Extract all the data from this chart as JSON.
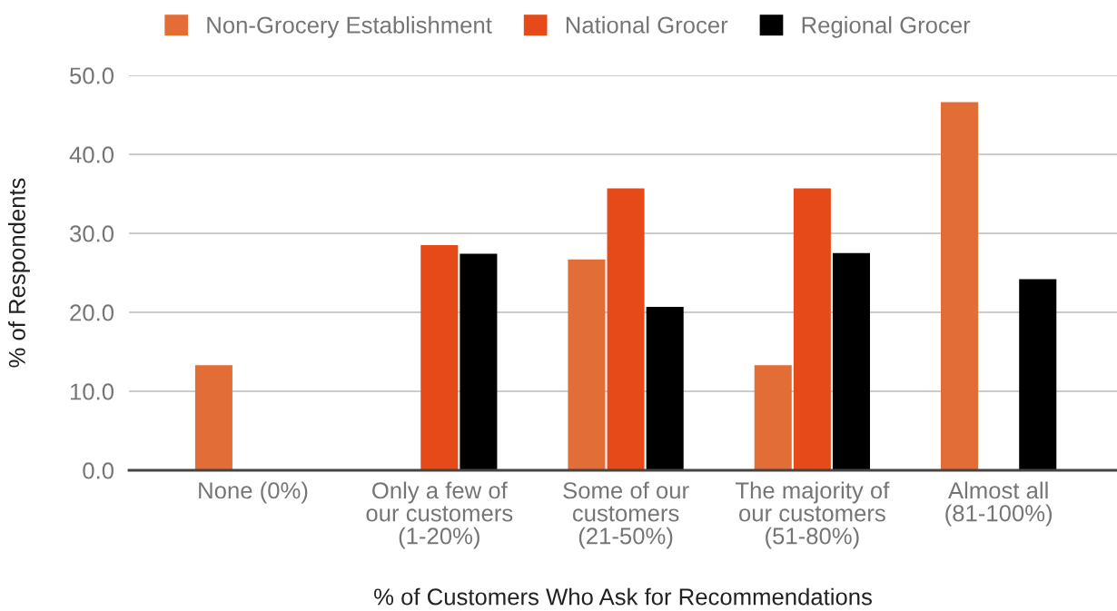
{
  "chart_data": {
    "type": "bar",
    "xlabel": "% of Customers Who Ask for Recommendations",
    "ylabel": "% of Respondents",
    "categories": [
      "None (0%)",
      "Only a few of\nour customers\n(1-20%)",
      "Some of our\ncustomers\n(21-50%)",
      "The majority of\nour customers\n(51-80%)",
      "Almost all\n(81-100%)"
    ],
    "series": [
      {
        "name": "Non-Grocery Establishment",
        "color": "#e36d36",
        "values": [
          13.3,
          null,
          26.7,
          13.3,
          46.6
        ]
      },
      {
        "name": "National Grocer",
        "color": "#e64a19",
        "values": [
          null,
          28.5,
          35.7,
          35.7,
          null
        ]
      },
      {
        "name": "Regional Grocer",
        "color": "#000000",
        "values": [
          null,
          27.4,
          20.7,
          27.5,
          24.2
        ]
      }
    ],
    "ylim": [
      0,
      50
    ],
    "yticks": [
      {
        "value": 0,
        "label": "0.0"
      },
      {
        "value": 10,
        "label": "10.0"
      },
      {
        "value": 20,
        "label": "20.0"
      },
      {
        "value": 30,
        "label": "30.0"
      },
      {
        "value": 40,
        "label": "40.0"
      },
      {
        "value": 50,
        "label": "50.0"
      }
    ],
    "grid": "y",
    "legend": "top"
  }
}
